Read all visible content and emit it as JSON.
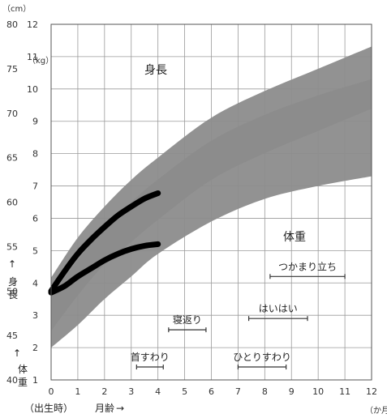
{
  "chart_data": {
    "type": "area",
    "x": {
      "label": "月齢",
      "sublabel": "（出生時）",
      "unit": "（か月）",
      "range": [
        0,
        12
      ],
      "ticks": [
        "0",
        "1",
        "2",
        "3",
        "4",
        "5",
        "6",
        "7",
        "8",
        "9",
        "10",
        "11",
        "12"
      ]
    },
    "height_axis": {
      "unit": "（cm）",
      "label": "身長",
      "range": [
        40,
        80
      ],
      "ticks": [
        "40",
        "45",
        "50",
        "55",
        "60",
        "65",
        "70",
        "75",
        "80"
      ]
    },
    "weight_axis": {
      "unit": "（kg）",
      "label": "体重",
      "range": [
        1,
        12
      ],
      "ticks": [
        "1",
        "2",
        "3",
        "4",
        "5",
        "6",
        "7",
        "8",
        "9",
        "10",
        "11",
        "12"
      ]
    },
    "bands": [
      {
        "label": "身長",
        "months": [
          0,
          1,
          2,
          3,
          4,
          6,
          8,
          10,
          12
        ],
        "lower": [
          45.5,
          49.5,
          53.0,
          55.5,
          58.0,
          62.5,
          65.5,
          68.0,
          70.5
        ],
        "upper": [
          51.5,
          56.0,
          59.5,
          62.5,
          65.0,
          69.5,
          72.5,
          75.0,
          77.5
        ]
      },
      {
        "label": "体重",
        "months": [
          0,
          1,
          2,
          3,
          4,
          6,
          8,
          10,
          12
        ],
        "lower": [
          2.0,
          2.7,
          3.5,
          4.2,
          4.9,
          5.9,
          6.6,
          7.0,
          7.3
        ],
        "upper": [
          3.6,
          4.7,
          5.7,
          6.5,
          7.2,
          8.4,
          9.2,
          9.8,
          10.3
        ]
      }
    ],
    "child_lines": [
      {
        "of": "身長",
        "months": [
          0,
          0.5,
          1,
          1.5,
          2,
          2.5,
          3,
          3.5,
          4
        ],
        "values": [
          50.0,
          52.2,
          54.2,
          55.8,
          57.2,
          58.5,
          59.5,
          60.4,
          61.0
        ]
      },
      {
        "of": "体重",
        "months": [
          0,
          0.5,
          1,
          1.5,
          2,
          2.5,
          3,
          3.5,
          4
        ],
        "values": [
          3.7,
          3.9,
          4.2,
          4.45,
          4.7,
          4.9,
          5.05,
          5.15,
          5.2
        ]
      }
    ],
    "milestones": [
      {
        "label": "首すわり",
        "start": 3.2,
        "end": 4.2,
        "level": 1.4
      },
      {
        "label": "寝返り",
        "start": 4.4,
        "end": 5.8,
        "level": 2.55
      },
      {
        "label": "ひとりすわり",
        "start": 7.0,
        "end": 8.8,
        "level": 1.4
      },
      {
        "label": "はいはい",
        "start": 7.4,
        "end": 9.6,
        "level": 2.9
      },
      {
        "label": "つかまり立ち",
        "start": 8.2,
        "end": 11.0,
        "level": 4.2
      }
    ],
    "grid": true
  }
}
